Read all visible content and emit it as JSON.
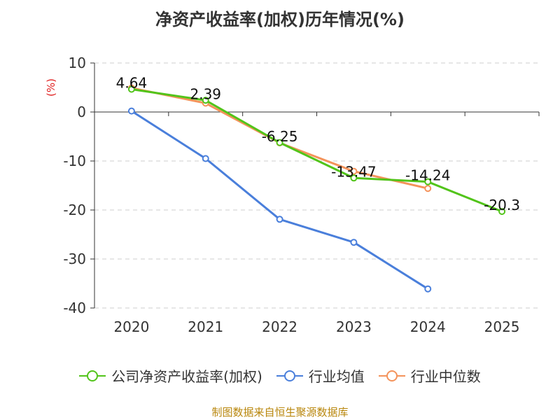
{
  "chart_data": {
    "type": "line",
    "title": "净资产收益率(加权)历年情况(%)",
    "ylabel": "(%)",
    "xlabel": "",
    "categories": [
      "2020",
      "2021",
      "2022",
      "2023",
      "2024",
      "2025"
    ],
    "ylim": [
      -40,
      10
    ],
    "yticks": [
      10,
      0,
      -10,
      -20,
      -30,
      -40
    ],
    "series": [
      {
        "name": "公司净资产收益率(加权)",
        "color": "#52c41a",
        "values": [
          4.64,
          2.39,
          -6.25,
          -13.47,
          -14.24,
          -20.3
        ],
        "labels": [
          "4.64",
          "2.39",
          "-6.25",
          "-13.47",
          "-14.24",
          "-20.3"
        ]
      },
      {
        "name": "行业均值",
        "color": "#4a7fdb",
        "values": [
          0.2,
          -9.5,
          -21.9,
          -26.6,
          -36.1,
          null
        ]
      },
      {
        "name": "行业中位数",
        "color": "#f4935b",
        "values": [
          4.9,
          1.8,
          -6.3,
          -12.1,
          -15.6,
          null
        ]
      }
    ]
  },
  "source": "制图数据来自恒生聚源数据库"
}
